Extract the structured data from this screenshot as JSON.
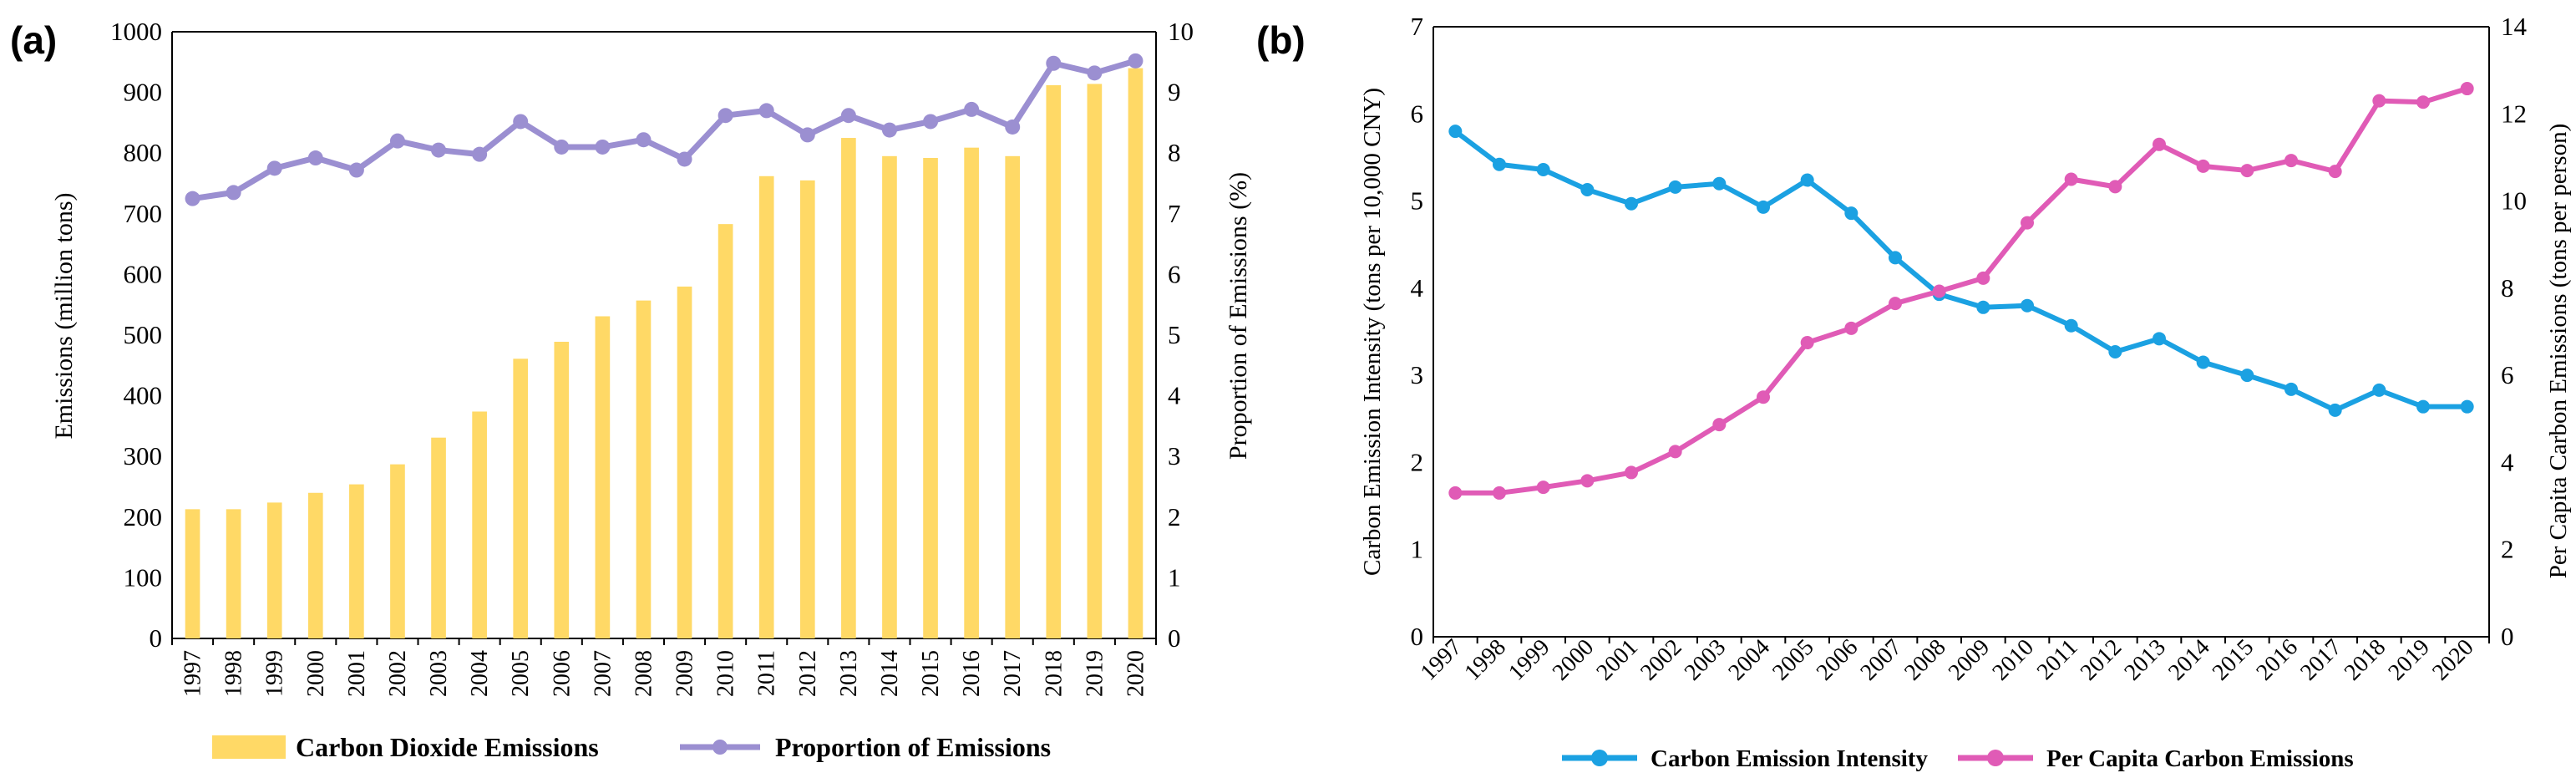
{
  "chart_data": [
    {
      "panel_label": "(a)",
      "type": "bar+line",
      "title": "",
      "categories": [
        "1997",
        "1998",
        "1999",
        "2000",
        "2001",
        "2002",
        "2003",
        "2004",
        "2005",
        "2006",
        "2007",
        "2008",
        "2009",
        "2010",
        "2011",
        "2012",
        "2013",
        "2014",
        "2015",
        "2016",
        "2017",
        "2018",
        "2019",
        "2020"
      ],
      "series": [
        {
          "name": "Carbon Dioxide Emissions",
          "type": "bar",
          "axis": "left",
          "color": "#FFD966",
          "values": [
            213,
            213,
            224,
            240,
            254,
            287,
            331,
            374,
            461,
            489,
            531,
            557,
            580,
            683,
            762,
            755,
            825,
            795,
            792,
            809,
            795,
            912,
            914,
            940
          ]
        },
        {
          "name": "Proportion of Emissions",
          "type": "line",
          "axis": "right",
          "color": "#9B8FD1",
          "values": [
            7.25,
            7.35,
            7.75,
            7.92,
            7.72,
            8.2,
            8.05,
            7.98,
            8.52,
            8.1,
            8.1,
            8.22,
            7.9,
            8.62,
            8.7,
            8.3,
            8.62,
            8.38,
            8.52,
            8.72,
            8.43,
            9.48,
            9.32,
            9.52
          ]
        }
      ],
      "ylabel": "Emissions (million tons)",
      "ylim": [
        0,
        1000
      ],
      "yticks": [
        "0",
        "100",
        "200",
        "300",
        "400",
        "500",
        "600",
        "700",
        "800",
        "900",
        "1000"
      ],
      "y2label": "Proportion of Emissions (%)",
      "y2lim": [
        0,
        10
      ],
      "y2ticks": [
        "0",
        "1",
        "2",
        "3",
        "4",
        "5",
        "6",
        "7",
        "8",
        "9",
        "10"
      ],
      "legend": "bottom"
    },
    {
      "panel_label": "(b)",
      "type": "line",
      "title": "",
      "categories": [
        "1997",
        "1998",
        "1999",
        "2000",
        "2001",
        "2002",
        "2003",
        "2004",
        "2005",
        "2006",
        "2007",
        "2008",
        "2009",
        "2010",
        "2011",
        "2012",
        "2013",
        "2014",
        "2015",
        "2016",
        "2017",
        "2018",
        "2019",
        "2020"
      ],
      "series": [
        {
          "name": "Carbon Emission Intensity",
          "axis": "left",
          "color": "#1BA1E2",
          "values": [
            5.8,
            5.42,
            5.36,
            5.13,
            4.97,
            5.16,
            5.2,
            4.93,
            5.24,
            4.86,
            4.35,
            3.93,
            3.78,
            3.8,
            3.57,
            3.27,
            3.42,
            3.15,
            3.0,
            2.84,
            2.6,
            2.83,
            2.64,
            2.64
          ]
        },
        {
          "name": "Per Capita Carbon Emissions",
          "axis": "right",
          "color": "#E05BB6",
          "values": [
            3.3,
            3.3,
            3.43,
            3.58,
            3.77,
            4.25,
            4.87,
            5.5,
            6.75,
            7.08,
            7.65,
            7.93,
            8.23,
            9.5,
            10.5,
            10.33,
            11.3,
            10.8,
            10.7,
            10.93,
            10.68,
            12.3,
            12.27,
            12.58
          ]
        }
      ],
      "ylabel": "Carbon Emission Intensity (tons per 10,000 CNY)",
      "ylim": [
        0,
        7
      ],
      "yticks": [
        "0",
        "1",
        "2",
        "3",
        "4",
        "5",
        "6",
        "7"
      ],
      "y2label": "Per Capita Carbon Emissions (tons per person)",
      "y2lim": [
        0,
        14
      ],
      "y2ticks": [
        "0",
        "2",
        "4",
        "6",
        "8",
        "10",
        "12",
        "14"
      ],
      "legend": "bottom"
    }
  ]
}
